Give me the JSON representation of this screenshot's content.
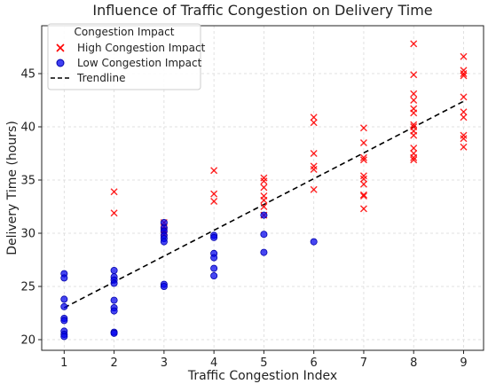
{
  "chart_data": {
    "type": "scatter",
    "title": "Influence of Traffic Congestion on Delivery Time",
    "xlabel": "Traffic Congestion Index",
    "ylabel": "Delivery Time (hours)",
    "xlim": [
      0.55,
      9.4
    ],
    "ylim": [
      19,
      49.5
    ],
    "xticks": [
      1,
      2,
      3,
      4,
      5,
      6,
      7,
      8,
      9
    ],
    "yticks": [
      20,
      25,
      30,
      35,
      40,
      45
    ],
    "grid": true,
    "legend": {
      "title": "Congestion Impact",
      "placement": "top-left",
      "entries": [
        "High Congestion Impact",
        "Low Congestion Impact",
        "Trendline"
      ]
    },
    "series": [
      {
        "name": "High Congestion Impact",
        "marker": "x",
        "color": "#ff0000",
        "points": [
          [
            2,
            33.9
          ],
          [
            2,
            31.9
          ],
          [
            3,
            31.0
          ],
          [
            3,
            30.6
          ],
          [
            3,
            30.3
          ],
          [
            3,
            30.1
          ],
          [
            3,
            29.9
          ],
          [
            4,
            35.9
          ],
          [
            4,
            33.7
          ],
          [
            4,
            33.0
          ],
          [
            5,
            35.2
          ],
          [
            5,
            34.9
          ],
          [
            5,
            34.3
          ],
          [
            5,
            33.5
          ],
          [
            5,
            33.1
          ],
          [
            5,
            32.5
          ],
          [
            5,
            31.7
          ],
          [
            6,
            40.9
          ],
          [
            6,
            40.4
          ],
          [
            6,
            37.5
          ],
          [
            6,
            36.3
          ],
          [
            6,
            36.0
          ],
          [
            6,
            34.1
          ],
          [
            7,
            39.9
          ],
          [
            7,
            38.5
          ],
          [
            7,
            37.1
          ],
          [
            7,
            36.9
          ],
          [
            7,
            35.4
          ],
          [
            7,
            35.1
          ],
          [
            7,
            34.6
          ],
          [
            7,
            33.6
          ],
          [
            7,
            33.5
          ],
          [
            7,
            32.3
          ],
          [
            8,
            47.8
          ],
          [
            8,
            44.9
          ],
          [
            8,
            43.1
          ],
          [
            8,
            42.5
          ],
          [
            8,
            41.7
          ],
          [
            8,
            41.3
          ],
          [
            8,
            40.2
          ],
          [
            8,
            40.0
          ],
          [
            8,
            39.6
          ],
          [
            8,
            39.2
          ],
          [
            8,
            38.0
          ],
          [
            8,
            37.5
          ],
          [
            8,
            37.1
          ],
          [
            8,
            36.9
          ],
          [
            9,
            46.6
          ],
          [
            9,
            45.3
          ],
          [
            9,
            45.0
          ],
          [
            9,
            44.8
          ],
          [
            9,
            42.8
          ],
          [
            9,
            41.4
          ],
          [
            9,
            40.9
          ],
          [
            9,
            39.2
          ],
          [
            9,
            38.9
          ],
          [
            9,
            38.1
          ]
        ]
      },
      {
        "name": "Low Congestion Impact",
        "marker": "o",
        "color": "#0000ee",
        "points": [
          [
            1,
            26.2
          ],
          [
            1,
            25.8
          ],
          [
            1,
            23.8
          ],
          [
            1,
            23.1
          ],
          [
            1,
            22.0
          ],
          [
            1,
            21.8
          ],
          [
            1,
            20.8
          ],
          [
            1,
            20.5
          ],
          [
            1,
            20.3
          ],
          [
            2,
            26.5
          ],
          [
            2,
            25.9
          ],
          [
            2,
            25.6
          ],
          [
            2,
            25.3
          ],
          [
            2,
            23.7
          ],
          [
            2,
            23.0
          ],
          [
            2,
            22.7
          ],
          [
            2,
            20.7
          ],
          [
            2,
            20.6
          ],
          [
            3,
            31.0
          ],
          [
            3,
            30.5
          ],
          [
            3,
            30.2
          ],
          [
            3,
            29.8
          ],
          [
            3,
            29.5
          ],
          [
            3,
            29.2
          ],
          [
            3,
            25.2
          ],
          [
            3,
            25.0
          ],
          [
            4,
            29.8
          ],
          [
            4,
            29.6
          ],
          [
            4,
            28.1
          ],
          [
            4,
            27.7
          ],
          [
            4,
            26.7
          ],
          [
            4,
            26.0
          ],
          [
            5,
            31.7
          ],
          [
            5,
            29.9
          ],
          [
            5,
            28.2
          ],
          [
            6,
            29.2
          ]
        ]
      }
    ],
    "trendline": {
      "name": "Trendline",
      "style": "dashed",
      "color": "#000000",
      "x": [
        1,
        9
      ],
      "y": [
        23.0,
        42.4
      ]
    }
  }
}
